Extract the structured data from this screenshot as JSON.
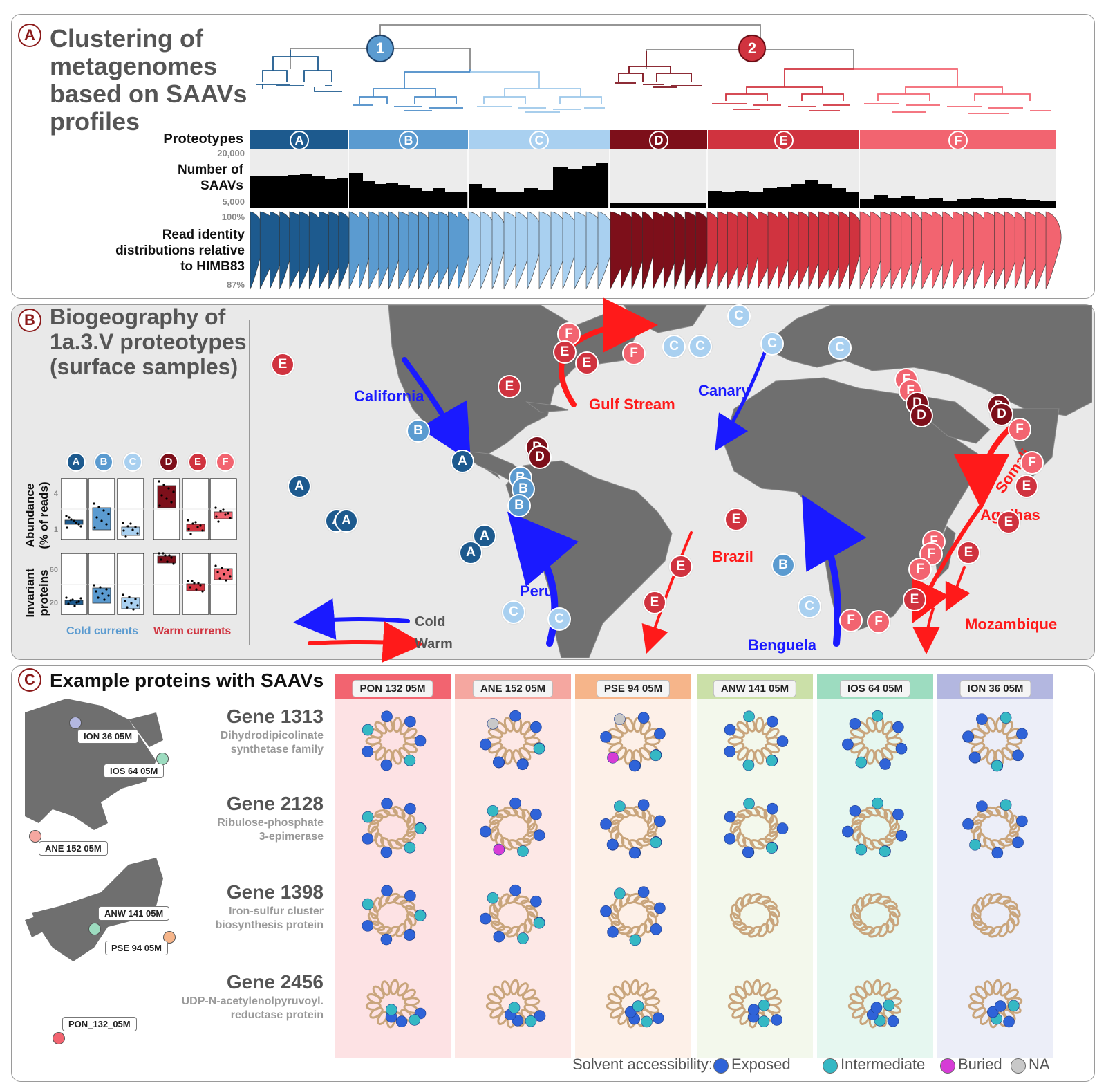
{
  "panel_a": {
    "letter": "A",
    "title_lines": [
      "Clustering of",
      "metagenomes",
      "based on SAAVs",
      "profiles"
    ],
    "clusters": [
      "1",
      "2"
    ],
    "row_proteotypes": "Proteotypes",
    "row_saavs_lines": [
      "Number of",
      "SAAVs"
    ],
    "saav_tick_top": "20,000",
    "saav_tick_bottom": "5,000",
    "row_read_lines": [
      "Read identity",
      "distributions relative",
      "to HIMB83"
    ],
    "read_tick_top": "100%",
    "read_tick_bottom": "87%",
    "proteotypes": [
      "A",
      "B",
      "C",
      "D",
      "E",
      "F"
    ],
    "colors": [
      "#1d5a8e",
      "#5b9bd0",
      "#a9d0f0",
      "#7d0f1a",
      "#d0333f",
      "#f26470"
    ]
  },
  "panel_b": {
    "letter": "B",
    "title_lines": [
      "Biogeography of",
      "1a.3.V proteotypes",
      "(surface samples)"
    ],
    "currents": {
      "california": "California",
      "canary": "Canary",
      "peru": "Peru",
      "benguela": "Benguela",
      "gulf_stream": "Gulf Stream",
      "somali": "Somali",
      "agulhas": "Agulhas",
      "brazil": "Brazil",
      "mozambique": "Mozambique"
    },
    "legend_cold": "Cold",
    "legend_warm": "Warm",
    "box_ylabel_top_lines": [
      "Abundance",
      "(% of reads)"
    ],
    "box_ylabel_bottom_lines": [
      "Invariant",
      "proteins"
    ],
    "box_ticks_top": [
      "4",
      "1"
    ],
    "box_ticks_bottom": [
      "60",
      "20"
    ],
    "cold_currents_label": "Cold currents",
    "warm_currents_label": "Warm currents",
    "cold_color": "#1a1aff",
    "warm_color": "#ff1a1a"
  },
  "panel_c": {
    "letter": "C",
    "title": "Example proteins with SAAVs",
    "samples": [
      {
        "name": "PON 132 05M",
        "color": "#f26470",
        "bg": "#fde2e4"
      },
      {
        "name": "ANE 152 05M",
        "color": "#f5a7a0",
        "bg": "#fde8e6"
      },
      {
        "name": "PSE 94 05M",
        "color": "#f6b58a",
        "bg": "#fdf0e8"
      },
      {
        "name": "ANW 141 05M",
        "color": "#cbe0a8",
        "bg": "#f3f8ec"
      },
      {
        "name": "IOS 64 05M",
        "color": "#9ddcc0",
        "bg": "#e6f7f0"
      },
      {
        "name": "ION 36 05M",
        "color": "#b3b7e0",
        "bg": "#eceef8"
      }
    ],
    "genes": [
      {
        "name": "Gene 1313",
        "desc_lines": [
          "Dihydrodipicolinate",
          "synthetase family"
        ]
      },
      {
        "name": "Gene 2128",
        "desc_lines": [
          "Ribulose-phosphate",
          "3-epimerase"
        ]
      },
      {
        "name": "Gene 1398",
        "desc_lines": [
          "Iron-sulfur cluster",
          "biosynthesis protein"
        ]
      },
      {
        "name": "Gene 2456",
        "desc_lines": [
          "UDP-N-acetylenolpyruvoyl.",
          "reductase protein"
        ]
      }
    ],
    "map_labels": {
      "ion": "ION 36 05M",
      "ios": "IOS 64 05M",
      "ane": "ANE 152 05M",
      "anw": "ANW 141 05M",
      "pse": "PSE 94 05M",
      "pon": "PON_132_05M"
    },
    "legend_title": "Solvent accessibility:",
    "legend_items": [
      {
        "label": "Exposed",
        "color": "#2f63d8"
      },
      {
        "label": "Intermediate",
        "color": "#35b8c4"
      },
      {
        "label": "Buried",
        "color": "#d63cd6"
      },
      {
        "label": "NA",
        "color": "#c8c8c8"
      }
    ]
  }
}
